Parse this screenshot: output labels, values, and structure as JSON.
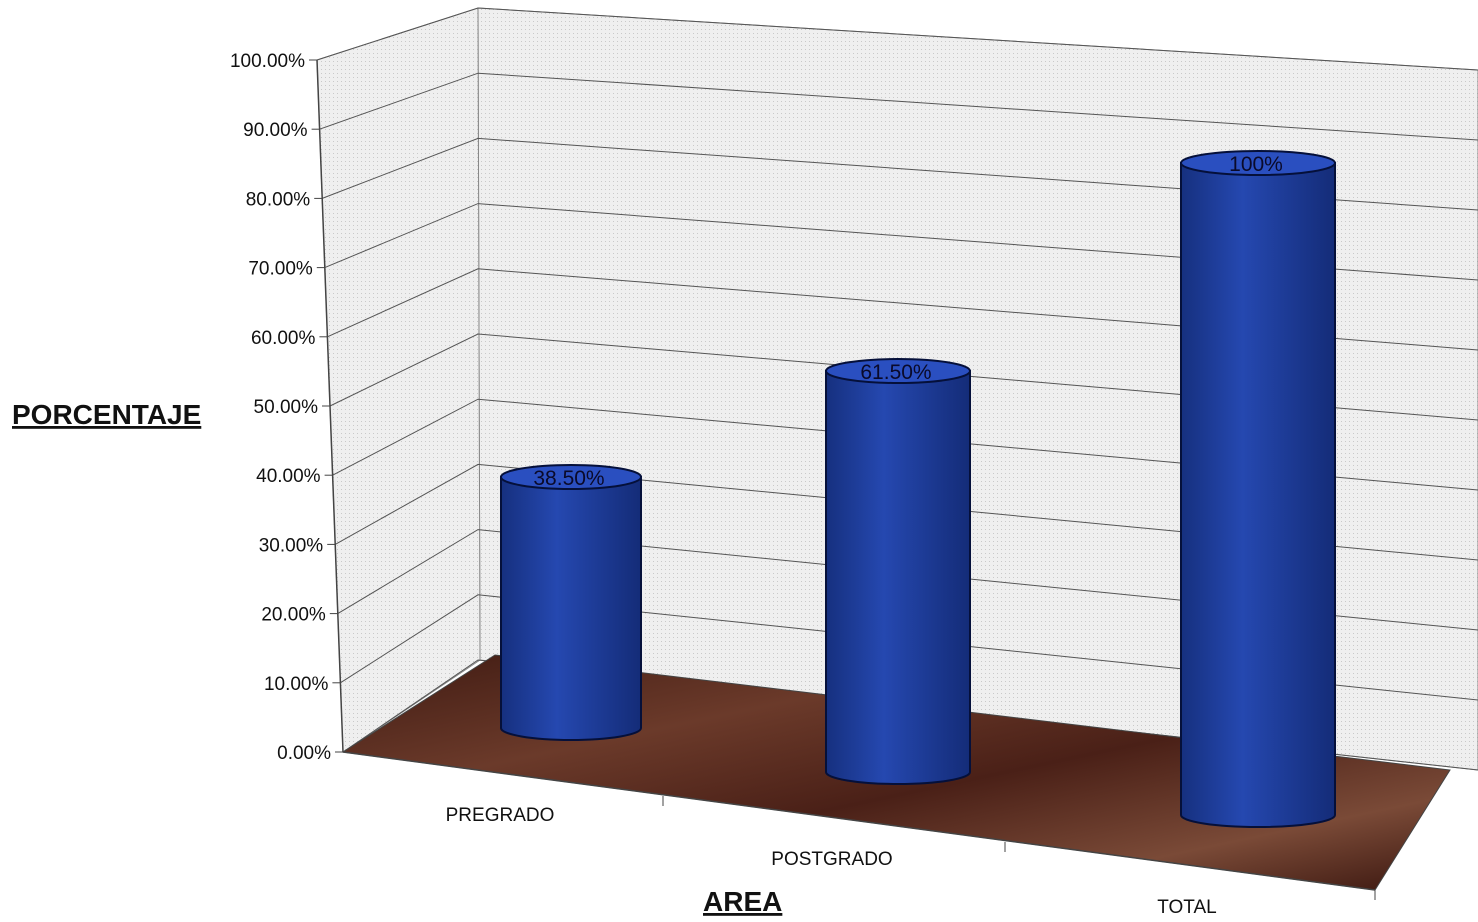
{
  "chart_data": {
    "type": "bar",
    "style": "3d-cylinder",
    "categories": [
      "PREGRADO",
      "POSTGRADO",
      "TOTAL"
    ],
    "values": [
      38.5,
      61.5,
      100
    ],
    "data_labels": [
      "38.50%",
      "61.50%",
      "100%"
    ],
    "ylabel": "PORCENTAJE",
    "xlabel": "AREA",
    "ylim": [
      0,
      100
    ],
    "yticks": [
      "0.00%",
      "10.00%",
      "20.00%",
      "30.00%",
      "40.00%",
      "50.00%",
      "60.00%",
      "70.00%",
      "80.00%",
      "90.00%",
      "100.00%"
    ],
    "grid": true,
    "legend": "none",
    "colors": {
      "bar": "#1f3f9e",
      "floor": "#5a2a1e",
      "wall": "#eeeeee"
    }
  }
}
